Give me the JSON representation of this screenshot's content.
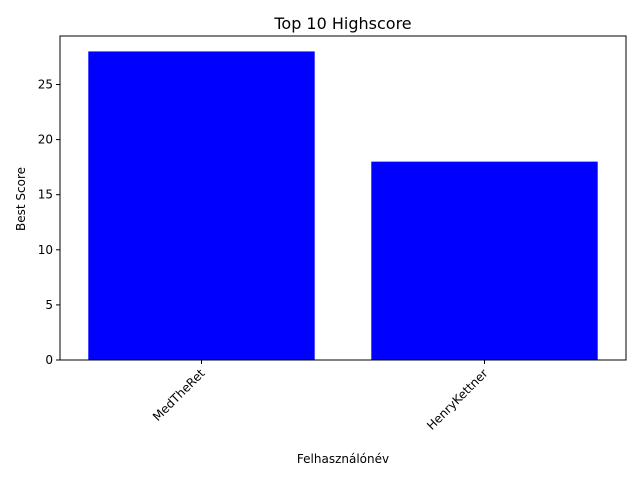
{
  "chart_data": {
    "type": "bar",
    "title": "Top 10 Highscore",
    "xlabel": "Felhasználónév",
    "ylabel": "Best Score",
    "categories": [
      "MedTheRet",
      "HenryKettner"
    ],
    "values": [
      28,
      18
    ],
    "ylim": [
      0,
      29.4
    ],
    "yticks": [
      0,
      5,
      10,
      15,
      20,
      25
    ],
    "bar_color": "#0000ff",
    "grid": false,
    "legend": false
  }
}
